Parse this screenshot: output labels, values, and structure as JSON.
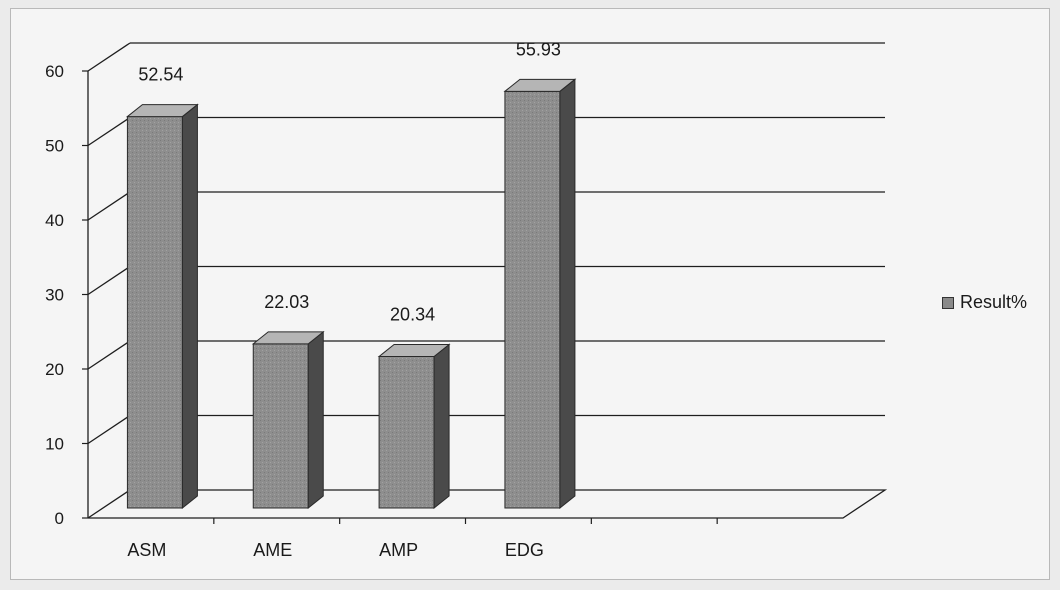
{
  "chart_data": {
    "type": "bar",
    "title": "",
    "xlabel": "",
    "ylabel": "",
    "categories": [
      "ASM",
      "AME",
      "AMP",
      "EDG",
      "",
      ""
    ],
    "series": [
      {
        "name": "Result%",
        "values": [
          52.54,
          22.03,
          20.34,
          55.93,
          null,
          null
        ]
      }
    ],
    "value_labels": [
      "52.54",
      "22.03",
      "20.34",
      "55.93"
    ],
    "ylim": [
      0,
      60
    ],
    "yticks": [
      0,
      10,
      20,
      30,
      40,
      50,
      60
    ],
    "grid": true,
    "legend_position": "right",
    "bar_style": "3d"
  },
  "colors": {
    "bar_front": "#8e8e8e",
    "bar_side": "#4a4a4a",
    "bar_top": "#b5b5b5",
    "grid": "#1e1e1e"
  }
}
